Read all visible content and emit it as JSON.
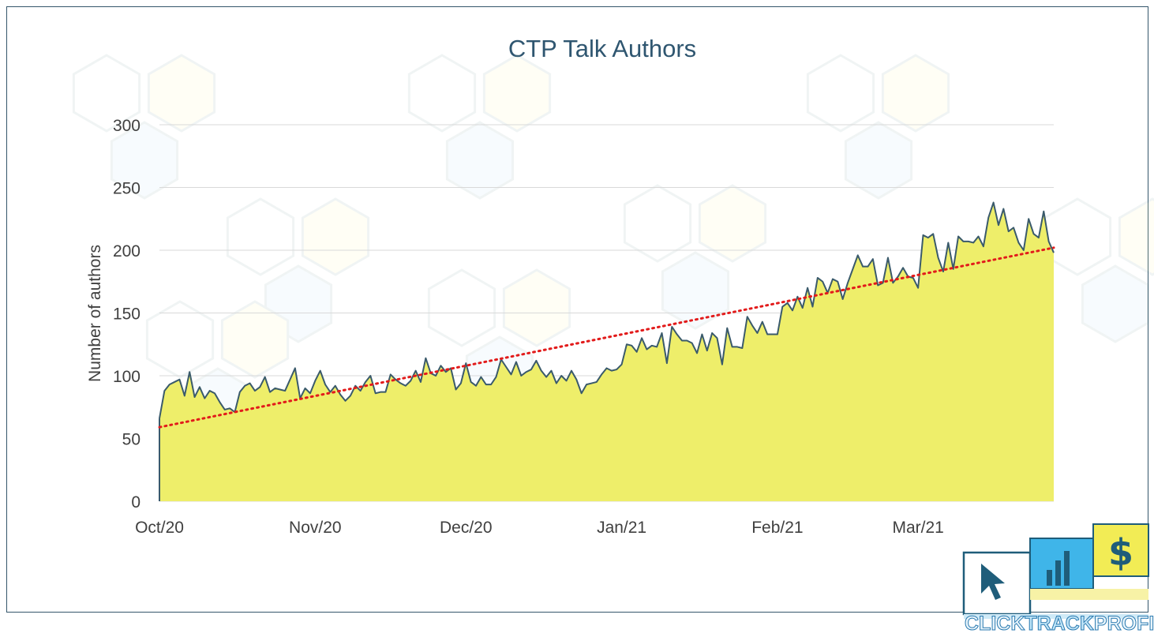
{
  "colors": {
    "fill": "#eeee6a",
    "line": "#3a5a6b",
    "trend": "#e21b1b",
    "grid": "#d9d9d9",
    "axis_text": "#404040",
    "title": "#2f5670",
    "brand_dark": "#1f5d7a",
    "brand_blue": "#3fb5e9",
    "brand_yellow": "#f2ec55"
  },
  "brand": {
    "text_1": "CLICK",
    "text_2": "TRACK",
    "text_3": "PROFIT",
    "icons": [
      "cursor-icon",
      "bar-chart-icon",
      "dollar-icon"
    ]
  },
  "chart_data": {
    "type": "area",
    "title": "CTP Talk Authors",
    "xlabel": "",
    "ylabel": "Number of authors",
    "ylim": [
      0,
      300
    ],
    "yticks": [
      0,
      50,
      100,
      150,
      200,
      250,
      300
    ],
    "x_start": "2020-10-01",
    "x_end": "2021-03-29",
    "xticks": [
      {
        "label": "Oct/20",
        "day": 0
      },
      {
        "label": "Nov/20",
        "day": 31
      },
      {
        "label": "Dec/20",
        "day": 61
      },
      {
        "label": "Jan/21",
        "day": 92
      },
      {
        "label": "Feb/21",
        "day": 123
      },
      {
        "label": "Mar/21",
        "day": 151
      }
    ],
    "grid": true,
    "legend": "none",
    "trendline": {
      "type": "linear",
      "start": 59,
      "end": 202,
      "style": "dotted"
    },
    "series": [
      {
        "name": "Authors",
        "values": [
          66,
          88,
          93,
          95,
          97,
          84,
          103,
          83,
          91,
          82,
          88,
          86,
          79,
          73,
          74,
          71,
          87,
          92,
          94,
          88,
          91,
          99,
          87,
          90,
          89,
          88,
          97,
          106,
          82,
          90,
          86,
          96,
          104,
          93,
          87,
          92,
          85,
          80,
          84,
          92,
          88,
          95,
          100,
          86,
          87,
          87,
          101,
          97,
          94,
          92,
          96,
          104,
          95,
          114,
          102,
          100,
          108,
          103,
          106,
          89,
          94,
          110,
          95,
          92,
          99,
          93,
          93,
          99,
          113,
          107,
          101,
          111,
          100,
          103,
          105,
          112,
          104,
          99,
          104,
          94,
          100,
          96,
          104,
          97,
          86,
          93,
          94,
          95,
          101,
          106,
          104,
          105,
          109,
          125,
          124,
          119,
          130,
          121,
          124,
          123,
          134,
          110,
          139,
          133,
          128,
          128,
          126,
          118,
          133,
          120,
          134,
          130,
          109,
          138,
          123,
          123,
          122,
          147,
          140,
          134,
          143,
          133,
          133,
          133,
          155,
          158,
          152,
          163,
          154,
          170,
          155,
          178,
          175,
          166,
          177,
          175,
          161,
          174,
          185,
          196,
          187,
          187,
          193,
          172,
          174,
          194,
          174,
          179,
          186,
          179,
          178,
          170,
          212,
          210,
          213,
          194,
          183,
          206,
          185,
          211,
          207,
          207,
          206,
          211,
          203,
          226,
          238,
          220,
          233,
          215,
          218,
          206,
          200,
          225,
          213,
          210,
          231,
          207,
          198
        ]
      }
    ]
  }
}
